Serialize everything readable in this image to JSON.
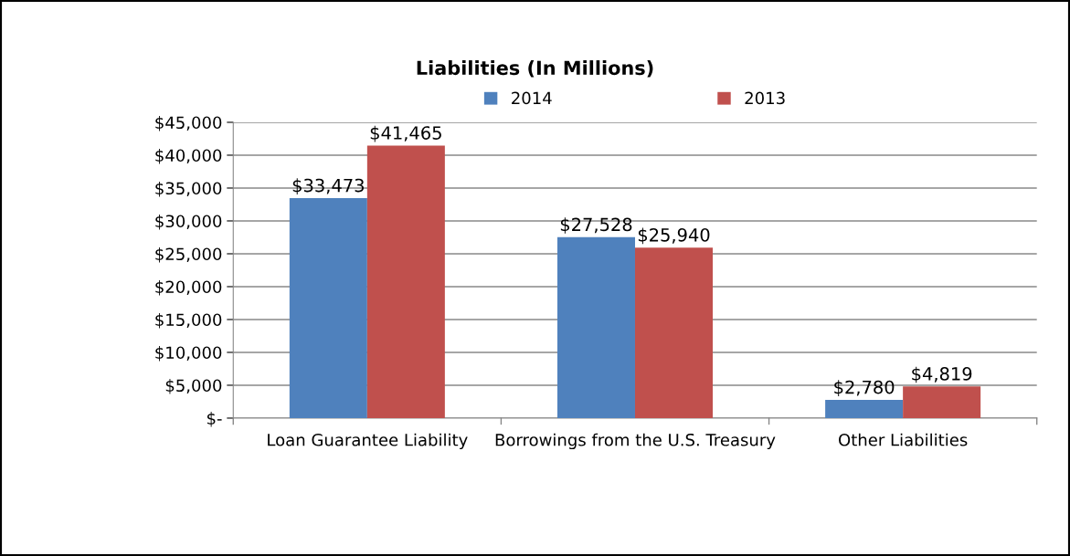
{
  "chart_data": {
    "type": "bar",
    "title": "Liabilities (In Millions)",
    "categories": [
      "Loan Guarantee Liability",
      "Borrowings from the U.S. Treasury",
      "Other Liabilities"
    ],
    "series": [
      {
        "name": "2014",
        "color": "#4f81bd",
        "values": [
          33473,
          27528,
          2780
        ],
        "value_labels": [
          "$33,473",
          "$27,528",
          "$2,780"
        ]
      },
      {
        "name": "2013",
        "color": "#c0504d",
        "values": [
          41465,
          25940,
          4819
        ],
        "value_labels": [
          "$41,465",
          "$25,940",
          "$4,819"
        ]
      }
    ],
    "ylim": [
      0,
      45000
    ],
    "yticks": [
      {
        "value": 0,
        "label": "$-"
      },
      {
        "value": 5000,
        "label": "$5,000"
      },
      {
        "value": 10000,
        "label": "$10,000"
      },
      {
        "value": 15000,
        "label": "$15,000"
      },
      {
        "value": 20000,
        "label": "$20,000"
      },
      {
        "value": 25000,
        "label": "$25,000"
      },
      {
        "value": 30000,
        "label": "$30,000"
      },
      {
        "value": 35000,
        "label": "$35,000"
      },
      {
        "value": 40000,
        "label": "$40,000"
      },
      {
        "value": 45000,
        "label": "$45,000"
      }
    ],
    "grid": "y",
    "legend": "top"
  }
}
